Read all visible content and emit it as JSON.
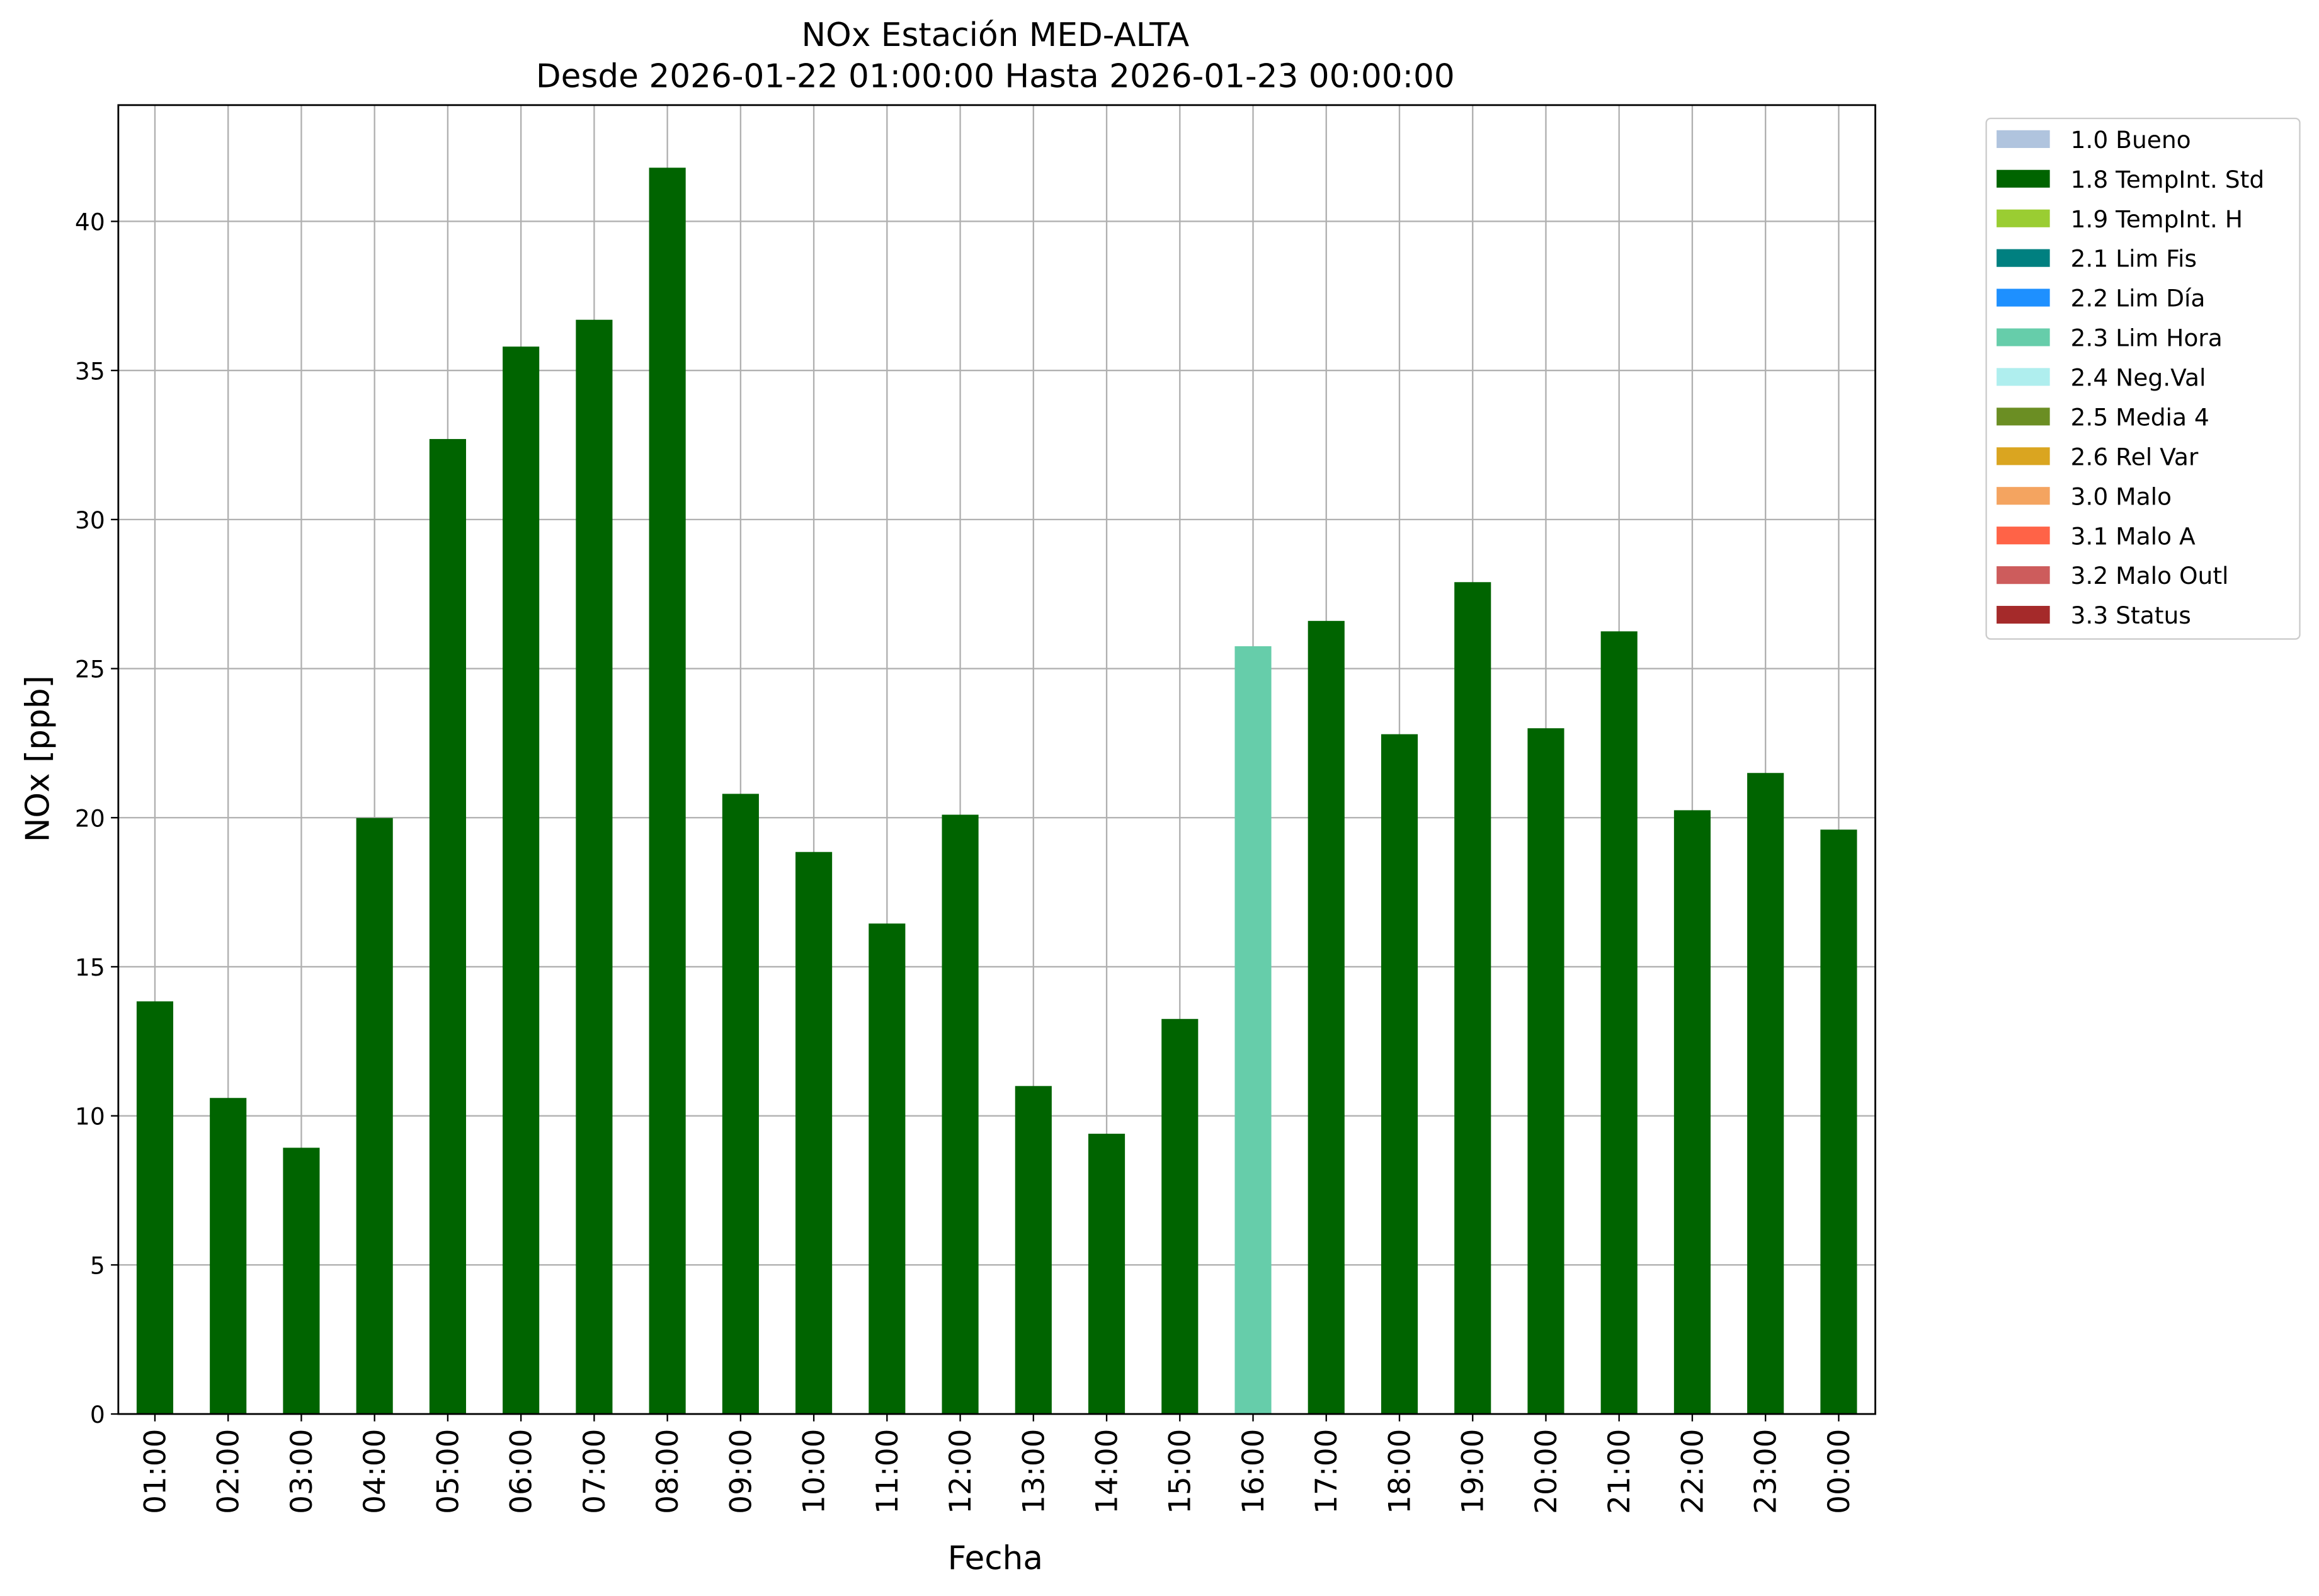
{
  "chart_data": {
    "type": "stacked_bar",
    "title": "NOx Estación MED-ALTA",
    "subtitle": "Desde 2026-01-22 01:00:00 Hasta 2026-01-23 00:00:00",
    "x_label": "Fecha",
    "y_label": "NOx [ppb]",
    "categories": [
      "01:00",
      "02:00",
      "03:00",
      "04:00",
      "05:00",
      "06:00",
      "07:00",
      "08:00",
      "09:00",
      "10:00",
      "11:00",
      "12:00",
      "13:00",
      "14:00",
      "15:00",
      "16:00",
      "17:00",
      "18:00",
      "19:00",
      "20:00",
      "21:00",
      "22:00",
      "23:00",
      "00:00"
    ],
    "series": [
      {
        "name": "1.0 Bueno",
        "color": "#b0c4de",
        "values": [
          null,
          null,
          null,
          null,
          null,
          null,
          null,
          null,
          null,
          null,
          null,
          null,
          null,
          null,
          null,
          null,
          null,
          null,
          null,
          null,
          null,
          null,
          null,
          null
        ]
      },
      {
        "name": "1.8 TempInt. Std",
        "color": "#006400",
        "values": [
          13.84,
          10.6,
          8.93,
          19.99,
          32.7,
          35.8,
          36.7,
          41.8,
          20.8,
          18.85,
          16.45,
          20.1,
          11.0,
          9.4,
          13.25,
          null,
          26.6,
          22.8,
          27.9,
          23.0,
          26.25,
          20.25,
          21.5,
          19.6
        ]
      },
      {
        "name": "1.9 TempInt. H",
        "color": "#9acd32",
        "values": [
          null,
          null,
          null,
          null,
          null,
          null,
          null,
          null,
          null,
          null,
          null,
          null,
          null,
          null,
          null,
          null,
          null,
          null,
          null,
          null,
          null,
          null,
          null,
          null
        ]
      },
      {
        "name": "2.1 Lim Fis",
        "color": "#008080",
        "values": [
          null,
          null,
          null,
          null,
          null,
          null,
          null,
          null,
          null,
          null,
          null,
          null,
          null,
          null,
          null,
          null,
          null,
          null,
          null,
          null,
          null,
          null,
          null,
          null
        ]
      },
      {
        "name": "2.2 Lim Día",
        "color": "#1e90ff",
        "values": [
          null,
          null,
          null,
          null,
          null,
          null,
          null,
          null,
          null,
          null,
          null,
          null,
          null,
          null,
          null,
          null,
          null,
          null,
          null,
          null,
          null,
          null,
          null,
          null
        ]
      },
      {
        "name": "2.3 Lim Hora",
        "color": "#66cdaa",
        "values": [
          null,
          null,
          null,
          null,
          null,
          null,
          null,
          null,
          null,
          null,
          null,
          null,
          null,
          null,
          null,
          25.75,
          null,
          null,
          null,
          null,
          null,
          null,
          null,
          null
        ]
      },
      {
        "name": "2.4 Neg.Val",
        "color": "#afeeee",
        "values": [
          null,
          null,
          null,
          null,
          null,
          null,
          null,
          null,
          null,
          null,
          null,
          null,
          null,
          null,
          null,
          null,
          null,
          null,
          null,
          null,
          null,
          null,
          null,
          null
        ]
      },
      {
        "name": "2.5 Media 4",
        "color": "#6b8e23",
        "values": [
          null,
          null,
          null,
          null,
          null,
          null,
          null,
          null,
          null,
          null,
          null,
          null,
          null,
          null,
          null,
          null,
          null,
          null,
          null,
          null,
          null,
          null,
          null,
          null
        ]
      },
      {
        "name": "2.6 Rel Var",
        "color": "#daa520",
        "values": [
          null,
          null,
          null,
          null,
          null,
          null,
          null,
          null,
          null,
          null,
          null,
          null,
          null,
          null,
          null,
          null,
          null,
          null,
          null,
          null,
          null,
          null,
          null,
          null
        ]
      },
      {
        "name": "3.0 Malo",
        "color": "#f4a460",
        "values": [
          null,
          null,
          null,
          null,
          null,
          null,
          null,
          null,
          null,
          null,
          null,
          null,
          null,
          null,
          null,
          null,
          null,
          null,
          null,
          null,
          null,
          null,
          null,
          null
        ]
      },
      {
        "name": "3.1 Malo A",
        "color": "#ff6347",
        "values": [
          null,
          null,
          null,
          null,
          null,
          null,
          null,
          null,
          null,
          null,
          null,
          null,
          null,
          null,
          null,
          null,
          null,
          null,
          null,
          null,
          null,
          null,
          null,
          null
        ]
      },
      {
        "name": "3.2 Malo Outl",
        "color": "#cd5c5c",
        "values": [
          null,
          null,
          null,
          null,
          null,
          null,
          null,
          null,
          null,
          null,
          null,
          null,
          null,
          null,
          null,
          null,
          null,
          null,
          null,
          null,
          null,
          null,
          null,
          null
        ]
      },
      {
        "name": "3.3 Status",
        "color": "#a52a2a",
        "values": [
          null,
          null,
          null,
          null,
          null,
          null,
          null,
          null,
          null,
          null,
          null,
          null,
          null,
          null,
          null,
          null,
          null,
          null,
          null,
          null,
          null,
          null,
          null,
          null
        ]
      }
    ],
    "ylim": [
      0,
      43.9
    ],
    "yticks": [
      0,
      5,
      10,
      15,
      20,
      25,
      30,
      35,
      40
    ],
    "grid": true,
    "legend": "outside right"
  }
}
